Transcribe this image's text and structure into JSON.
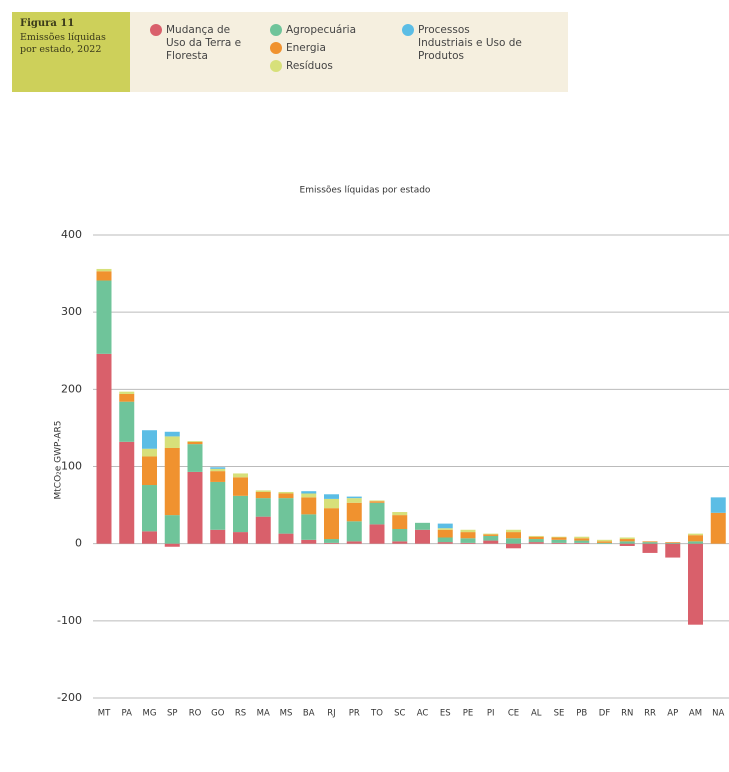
{
  "chart_data": {
    "type": "stacked_bar",
    "figure_label": "Figura 11",
    "figure_caption": "Emissões líquidas por estado, 2022",
    "title": "Emissões líquidas por estado",
    "y_label": "MtCO₂e GWP-AR5",
    "categories": [
      "MT",
      "PA",
      "MG",
      "SP",
      "RO",
      "GO",
      "RS",
      "MA",
      "MS",
      "BA",
      "RJ",
      "PR",
      "TO",
      "SC",
      "AC",
      "ES",
      "PE",
      "PI",
      "CE",
      "AL",
      "SE",
      "PB",
      "DF",
      "RN",
      "RR",
      "AP",
      "AM",
      "NA"
    ],
    "series": [
      {
        "name": "Mudança de Uso da Terra e Floresta",
        "color": "#d9606b",
        "values": [
          246,
          132,
          16,
          -4,
          93,
          18,
          15,
          35,
          13,
          5,
          1,
          3,
          25,
          3,
          18,
          2,
          1,
          4,
          -6,
          2,
          1,
          1,
          0,
          -3,
          -12,
          -18,
          -105,
          0
        ]
      },
      {
        "name": "Agropecuária",
        "color": "#6fc49a",
        "values": [
          95,
          52,
          60,
          37,
          36,
          62,
          47,
          24,
          46,
          33,
          5,
          26,
          28,
          16,
          9,
          6,
          6,
          6,
          7,
          4,
          4,
          3,
          1,
          3,
          2,
          1,
          3,
          0
        ]
      },
      {
        "name": "Energia",
        "color": "#f0922f",
        "values": [
          12,
          10,
          37,
          87,
          3,
          14,
          24,
          8,
          6,
          22,
          40,
          24,
          2,
          18,
          0,
          10,
          8,
          2,
          8,
          3,
          3,
          3,
          2,
          3,
          1,
          1,
          8,
          40
        ]
      },
      {
        "name": "Resíduos",
        "color": "#d7e07a",
        "values": [
          3,
          3,
          10,
          15,
          1,
          3,
          5,
          2,
          2,
          5,
          12,
          6,
          1,
          4,
          0,
          2,
          3,
          1,
          3,
          1,
          1,
          2,
          2,
          2,
          0,
          0,
          2,
          0
        ]
      },
      {
        "name": "Processos Industriais e Uso de Produtos",
        "color": "#5bbde5",
        "values": [
          0,
          0,
          24,
          6,
          0,
          2,
          0,
          0,
          0,
          3,
          6,
          2,
          0,
          0,
          0,
          6,
          0,
          0,
          0,
          0,
          0,
          0,
          0,
          0,
          0,
          0,
          0,
          20
        ]
      }
    ],
    "ylim": [
      -200,
      400
    ],
    "yticks": [
      -200,
      -100,
      0,
      100,
      200,
      300,
      400
    ],
    "grid": true
  }
}
